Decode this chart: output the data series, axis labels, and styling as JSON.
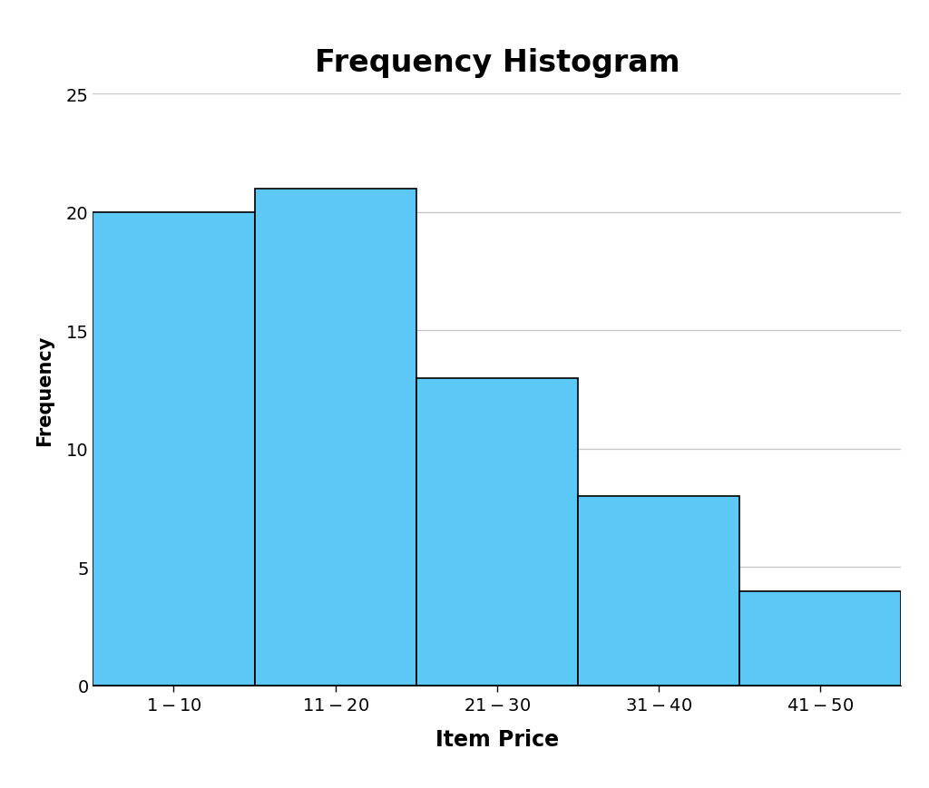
{
  "title": "Frequency Histogram",
  "xlabel": "Item Price",
  "ylabel": "Frequency",
  "categories": [
    "$1 - $10",
    "$11 - $20",
    "$21 - $30",
    "$31 - $40",
    "$41 - $50"
  ],
  "values": [
    20,
    21,
    13,
    8,
    4
  ],
  "bar_color": "#5BC8F5",
  "bar_edge_color": "#000000",
  "bar_edge_width": 1.2,
  "ylim": [
    0,
    25
  ],
  "yticks": [
    0,
    5,
    10,
    15,
    20,
    25
  ],
  "title_fontsize": 24,
  "title_fontweight": "bold",
  "xlabel_fontsize": 17,
  "xlabel_fontweight": "bold",
  "ylabel_fontsize": 15,
  "ylabel_fontweight": "bold",
  "tick_fontsize": 14,
  "background_color": "#ffffff",
  "grid_color": "#c8c8c8",
  "grid_linewidth": 1.0
}
